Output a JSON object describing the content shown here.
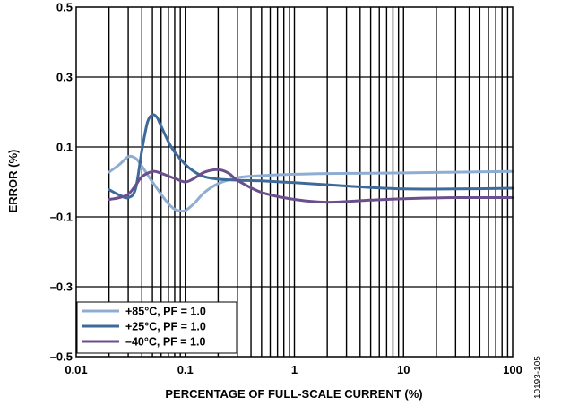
{
  "chart_data": {
    "type": "line",
    "title": "",
    "xlabel": "PERCENTAGE OF FULL-SCALE CURRENT (%)",
    "ylabel": "ERROR (%)",
    "xscale": "log",
    "xlim": [
      0.01,
      100
    ],
    "ylim": [
      -0.5,
      0.5
    ],
    "grid": true,
    "legend_position": "bottom-left",
    "x_ticks": [
      {
        "value": 0.01,
        "label": "0.01"
      },
      {
        "value": 0.1,
        "label": "0.1"
      },
      {
        "value": 1,
        "label": "1"
      },
      {
        "value": 10,
        "label": "10"
      },
      {
        "value": 100,
        "label": "100"
      }
    ],
    "y_ticks": [
      {
        "value": 0.5,
        "label": "0.5"
      },
      {
        "value": 0.3,
        "label": "0.3"
      },
      {
        "value": 0.1,
        "label": "0.1"
      },
      {
        "value": -0.1,
        "label": "–0.1"
      },
      {
        "value": -0.3,
        "label": "–0.3"
      },
      {
        "value": -0.5,
        "label": "–0.5"
      }
    ],
    "series": [
      {
        "name": "+85°C, PF = 1.0",
        "color": "#8fadd3",
        "points": [
          [
            0.02,
            0.028
          ],
          [
            0.025,
            0.05
          ],
          [
            0.03,
            0.072
          ],
          [
            0.035,
            0.068
          ],
          [
            0.04,
            0.045
          ],
          [
            0.05,
            0.0
          ],
          [
            0.06,
            -0.035
          ],
          [
            0.07,
            -0.062
          ],
          [
            0.08,
            -0.078
          ],
          [
            0.09,
            -0.083
          ],
          [
            0.1,
            -0.082
          ],
          [
            0.12,
            -0.062
          ],
          [
            0.15,
            -0.03
          ],
          [
            0.2,
            -0.005
          ],
          [
            0.3,
            0.012
          ],
          [
            0.5,
            0.018
          ],
          [
            1,
            0.022
          ],
          [
            2,
            0.024
          ],
          [
            5,
            0.025
          ],
          [
            10,
            0.026
          ],
          [
            30,
            0.028
          ],
          [
            100,
            0.03
          ]
        ]
      },
      {
        "name": "+25°C, PF = 1.0",
        "color": "#3d6a9a",
        "points": [
          [
            0.02,
            -0.022
          ],
          [
            0.025,
            -0.038
          ],
          [
            0.03,
            -0.045
          ],
          [
            0.035,
            -0.02
          ],
          [
            0.04,
            0.09
          ],
          [
            0.045,
            0.17
          ],
          [
            0.05,
            0.192
          ],
          [
            0.055,
            0.185
          ],
          [
            0.06,
            0.16
          ],
          [
            0.07,
            0.115
          ],
          [
            0.08,
            0.085
          ],
          [
            0.1,
            0.05
          ],
          [
            0.12,
            0.03
          ],
          [
            0.15,
            0.015
          ],
          [
            0.2,
            0.008
          ],
          [
            0.3,
            0.005
          ],
          [
            0.5,
            0.003
          ],
          [
            1,
            -0.002
          ],
          [
            2,
            -0.008
          ],
          [
            5,
            -0.016
          ],
          [
            10,
            -0.02
          ],
          [
            30,
            -0.02
          ],
          [
            100,
            -0.018
          ]
        ]
      },
      {
        "name": "–40°C, PF = 1.0",
        "color": "#6b4e8c",
        "points": [
          [
            0.02,
            -0.05
          ],
          [
            0.025,
            -0.045
          ],
          [
            0.03,
            -0.035
          ],
          [
            0.035,
            -0.01
          ],
          [
            0.04,
            0.015
          ],
          [
            0.05,
            0.03
          ],
          [
            0.06,
            0.025
          ],
          [
            0.08,
            0.01
          ],
          [
            0.1,
            0.0
          ],
          [
            0.12,
            0.01
          ],
          [
            0.15,
            0.028
          ],
          [
            0.2,
            0.035
          ],
          [
            0.25,
            0.025
          ],
          [
            0.3,
            0.005
          ],
          [
            0.5,
            -0.03
          ],
          [
            1,
            -0.05
          ],
          [
            2,
            -0.058
          ],
          [
            5,
            -0.052
          ],
          [
            10,
            -0.048
          ],
          [
            30,
            -0.045
          ],
          [
            100,
            -0.045
          ]
        ]
      }
    ]
  },
  "figure_id": "10193-105"
}
